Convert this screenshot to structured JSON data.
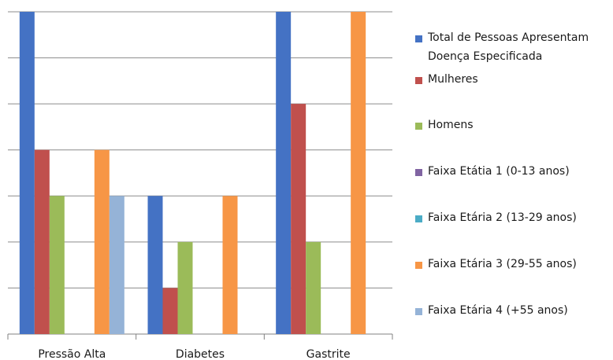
{
  "chart_data": {
    "type": "bar",
    "title": "",
    "xlabel": "",
    "ylabel": "",
    "categories": [
      "Pressão Alta",
      "Diabetes",
      "Gastrite"
    ],
    "ylim": [
      0,
      7
    ],
    "grid": true,
    "legend_position": "right",
    "series": [
      {
        "name": "Total de Pessoas Apresentam Doença Especificada",
        "color": "#4472C4",
        "values": [
          7,
          3,
          7
        ]
      },
      {
        "name": "Mulheres",
        "color": "#C0504D",
        "values": [
          4,
          1,
          5
        ]
      },
      {
        "name": "Homens",
        "color": "#9BBB59",
        "values": [
          3,
          2,
          2
        ]
      },
      {
        "name": "Faixa Etátia 1 (0-13 anos)",
        "color": "#8064A2",
        "values": [
          0,
          0,
          0
        ]
      },
      {
        "name": "Faixa Etária 2 (13-29 anos)",
        "color": "#4BACC6",
        "values": [
          0,
          0,
          0
        ]
      },
      {
        "name": "Faixa Etária 3 (29-55 anos)",
        "color": "#F79646",
        "values": [
          4,
          3,
          7
        ]
      },
      {
        "name": "Faixa Etária 4 (+55 anos)",
        "color": "#95B3D7",
        "values": [
          3,
          0,
          0
        ]
      }
    ]
  }
}
